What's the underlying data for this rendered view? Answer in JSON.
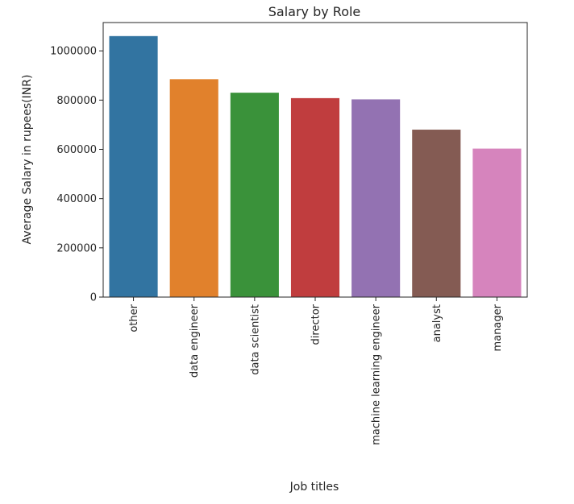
{
  "chart_data": {
    "type": "bar",
    "title": "Salary by Role",
    "xlabel": "Job titles",
    "ylabel": "Average Salary in rupees(INR)",
    "categories": [
      "other",
      "data engineer",
      "data scientist",
      "director",
      "machine learning engineer",
      "analyst",
      "manager"
    ],
    "values": [
      1060000,
      885000,
      830000,
      808000,
      803000,
      680000,
      603000
    ],
    "colors": [
      "#3274a1",
      "#e1812c",
      "#3a923a",
      "#c03d3e",
      "#9372b2",
      "#845b53",
      "#d684bd"
    ],
    "ylim": [
      0,
      1115000
    ],
    "yticks": [
      0,
      200000,
      400000,
      600000,
      800000,
      1000000
    ],
    "grid": false,
    "legend": "none"
  }
}
